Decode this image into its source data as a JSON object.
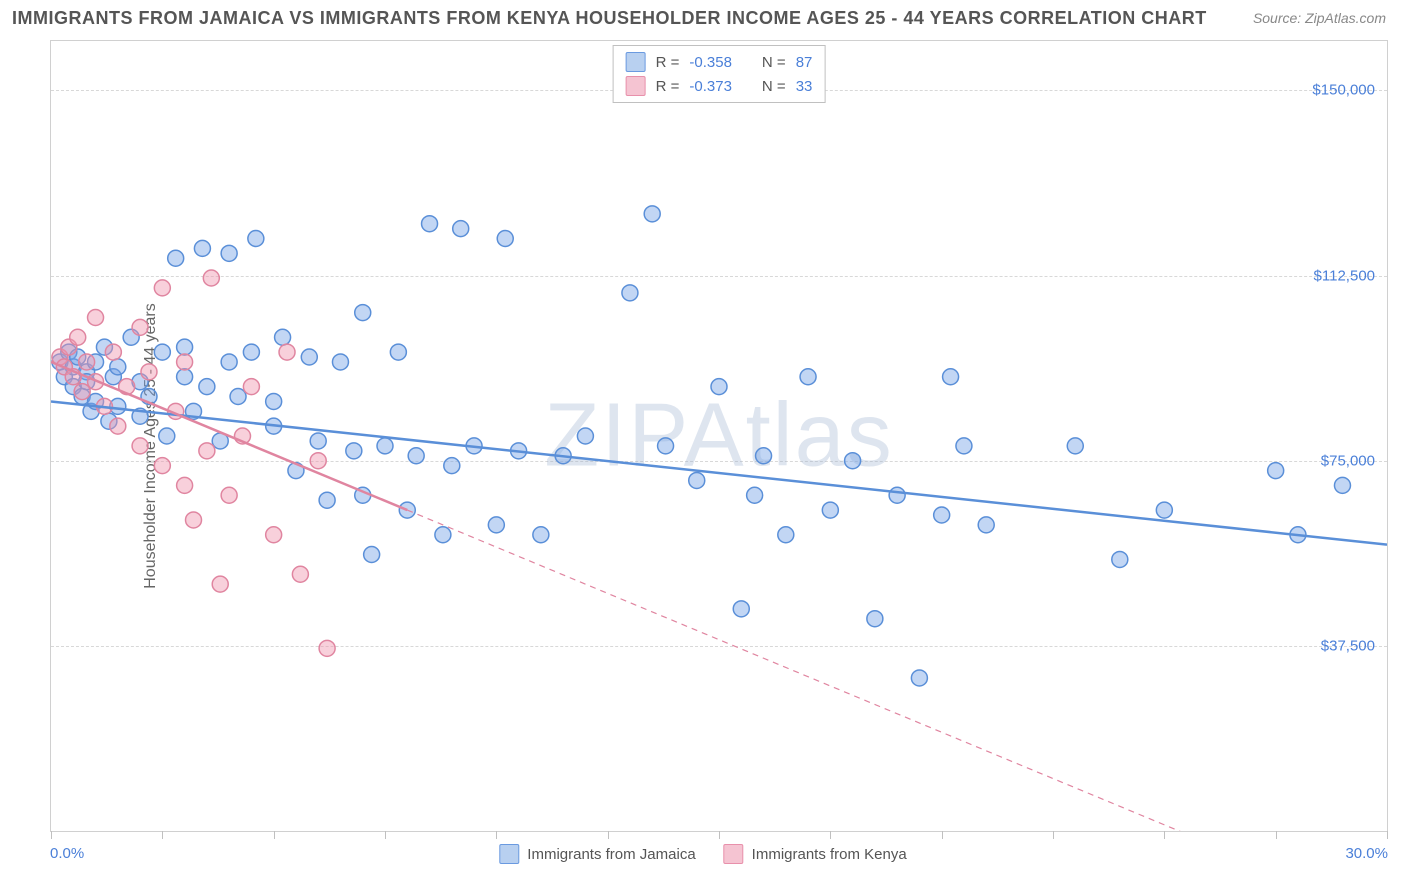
{
  "title": "IMMIGRANTS FROM JAMAICA VS IMMIGRANTS FROM KENYA HOUSEHOLDER INCOME AGES 25 - 44 YEARS CORRELATION CHART",
  "source_prefix": "Source:",
  "source_name": "ZipAtlas.com",
  "watermark": "ZIPAtlas",
  "y_axis_label": "Householder Income Ages 25 - 44 years",
  "chart": {
    "type": "scatter",
    "background_color": "#ffffff",
    "grid_color": "#d8d8d8",
    "frame_color": "#d0d0d0",
    "xlim": [
      0,
      30
    ],
    "ylim": [
      0,
      160000
    ],
    "x_tick_label_left": "0.0%",
    "x_tick_label_right": "30.0%",
    "x_minor_ticks": [
      0,
      2.5,
      5,
      7.5,
      10,
      12.5,
      15,
      17.5,
      20,
      22.5,
      25,
      27.5,
      30
    ],
    "y_gridlines": [
      37500,
      75000,
      112500,
      150000
    ],
    "y_tick_labels": [
      "$37,500",
      "$75,000",
      "$112,500",
      "$150,000"
    ],
    "y_tick_color": "#4a7fd8",
    "x_tick_color": "#4a7fd8",
    "marker_radius": 8,
    "marker_stroke_width": 1.5,
    "trend_line_width": 2.5,
    "trend_dash": "6,5"
  },
  "series": [
    {
      "name": "Immigrants from Jamaica",
      "fill_color": "rgba(120,165,230,0.45)",
      "stroke_color": "#5a8fd8",
      "swatch_fill": "#b8d0f0",
      "swatch_border": "#6a9ae0",
      "stats": {
        "R": "-0.358",
        "N": "87"
      },
      "trend_solid": {
        "x1": 0,
        "y1": 87000,
        "x2": 30,
        "y2": 58000
      },
      "points": [
        [
          0.2,
          95000
        ],
        [
          0.3,
          92000
        ],
        [
          0.4,
          97000
        ],
        [
          0.5,
          90000
        ],
        [
          0.5,
          94000
        ],
        [
          0.6,
          96000
        ],
        [
          0.7,
          88000
        ],
        [
          0.8,
          93000
        ],
        [
          0.8,
          91000
        ],
        [
          0.9,
          85000
        ],
        [
          1.0,
          95000
        ],
        [
          1.0,
          87000
        ],
        [
          1.2,
          98000
        ],
        [
          1.3,
          83000
        ],
        [
          1.4,
          92000
        ],
        [
          1.5,
          86000
        ],
        [
          1.5,
          94000
        ],
        [
          1.8,
          100000
        ],
        [
          2.0,
          84000
        ],
        [
          2.0,
          91000
        ],
        [
          2.2,
          88000
        ],
        [
          2.5,
          97000
        ],
        [
          2.6,
          80000
        ],
        [
          2.8,
          116000
        ],
        [
          3.0,
          92000
        ],
        [
          3.0,
          98000
        ],
        [
          3.2,
          85000
        ],
        [
          3.4,
          118000
        ],
        [
          3.5,
          90000
        ],
        [
          3.8,
          79000
        ],
        [
          4.0,
          95000
        ],
        [
          4.0,
          117000
        ],
        [
          4.2,
          88000
        ],
        [
          4.5,
          97000
        ],
        [
          4.6,
          120000
        ],
        [
          5.0,
          87000
        ],
        [
          5.0,
          82000
        ],
        [
          5.2,
          100000
        ],
        [
          5.5,
          73000
        ],
        [
          5.8,
          96000
        ],
        [
          6.0,
          79000
        ],
        [
          6.2,
          67000
        ],
        [
          6.5,
          95000
        ],
        [
          6.8,
          77000
        ],
        [
          7.0,
          105000
        ],
        [
          7.0,
          68000
        ],
        [
          7.2,
          56000
        ],
        [
          7.5,
          78000
        ],
        [
          7.8,
          97000
        ],
        [
          8.0,
          65000
        ],
        [
          8.2,
          76000
        ],
        [
          8.5,
          123000
        ],
        [
          8.8,
          60000
        ],
        [
          9.0,
          74000
        ],
        [
          9.2,
          122000
        ],
        [
          9.5,
          78000
        ],
        [
          10.0,
          62000
        ],
        [
          10.2,
          120000
        ],
        [
          10.5,
          77000
        ],
        [
          11.0,
          60000
        ],
        [
          11.5,
          76000
        ],
        [
          12.0,
          80000
        ],
        [
          13.0,
          109000
        ],
        [
          13.5,
          125000
        ],
        [
          13.8,
          78000
        ],
        [
          14.5,
          71000
        ],
        [
          15.0,
          90000
        ],
        [
          15.5,
          45000
        ],
        [
          15.8,
          68000
        ],
        [
          16.0,
          76000
        ],
        [
          16.5,
          60000
        ],
        [
          17.0,
          92000
        ],
        [
          17.5,
          65000
        ],
        [
          18.0,
          75000
        ],
        [
          18.5,
          43000
        ],
        [
          19.0,
          68000
        ],
        [
          19.5,
          31000
        ],
        [
          20.0,
          64000
        ],
        [
          20.2,
          92000
        ],
        [
          20.5,
          78000
        ],
        [
          21.0,
          62000
        ],
        [
          23.0,
          78000
        ],
        [
          24.0,
          55000
        ],
        [
          25.0,
          65000
        ],
        [
          27.5,
          73000
        ],
        [
          28.0,
          60000
        ],
        [
          29.0,
          70000
        ]
      ]
    },
    {
      "name": "Immigrants from Kenya",
      "fill_color": "rgba(240,150,175,0.45)",
      "stroke_color": "#e085a0",
      "swatch_fill": "#f5c4d2",
      "swatch_border": "#e890ab",
      "stats": {
        "R": "-0.373",
        "N": "33"
      },
      "trend_solid": {
        "x1": 0,
        "y1": 95000,
        "x2": 8,
        "y2": 65000
      },
      "trend_dashed": {
        "x1": 8,
        "y1": 65000,
        "x2": 28,
        "y2": -10000
      },
      "points": [
        [
          0.2,
          96000
        ],
        [
          0.3,
          94000
        ],
        [
          0.4,
          98000
        ],
        [
          0.5,
          92000
        ],
        [
          0.6,
          100000
        ],
        [
          0.7,
          89000
        ],
        [
          0.8,
          95000
        ],
        [
          1.0,
          104000
        ],
        [
          1.0,
          91000
        ],
        [
          1.2,
          86000
        ],
        [
          1.4,
          97000
        ],
        [
          1.5,
          82000
        ],
        [
          1.7,
          90000
        ],
        [
          2.0,
          78000
        ],
        [
          2.0,
          102000
        ],
        [
          2.2,
          93000
        ],
        [
          2.5,
          74000
        ],
        [
          2.5,
          110000
        ],
        [
          2.8,
          85000
        ],
        [
          3.0,
          70000
        ],
        [
          3.0,
          95000
        ],
        [
          3.2,
          63000
        ],
        [
          3.5,
          77000
        ],
        [
          3.6,
          112000
        ],
        [
          3.8,
          50000
        ],
        [
          4.0,
          68000
        ],
        [
          4.3,
          80000
        ],
        [
          4.5,
          90000
        ],
        [
          5.0,
          60000
        ],
        [
          5.3,
          97000
        ],
        [
          5.6,
          52000
        ],
        [
          6.0,
          75000
        ],
        [
          6.2,
          37000
        ]
      ]
    }
  ],
  "stats_box": {
    "rows": [
      {
        "swatch_series": 0,
        "r_label": "R =",
        "n_label": "N ="
      },
      {
        "swatch_series": 1,
        "r_label": "R =",
        "n_label": "N ="
      }
    ]
  },
  "bottom_legend": [
    "Immigrants from Jamaica",
    "Immigrants from Kenya"
  ]
}
